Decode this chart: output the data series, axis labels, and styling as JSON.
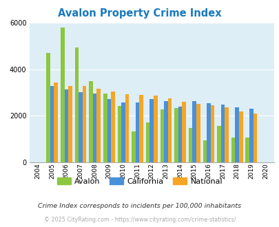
{
  "title": "Avalon Property Crime Index",
  "years": [
    2004,
    2005,
    2006,
    2007,
    2008,
    2009,
    2010,
    2011,
    2012,
    2013,
    2014,
    2015,
    2016,
    2017,
    2018,
    2019,
    2020
  ],
  "avalon": [
    0,
    4700,
    5800,
    4950,
    3500,
    2950,
    2420,
    1330,
    1720,
    2280,
    2330,
    1480,
    950,
    1560,
    1060,
    1060,
    0
  ],
  "california": [
    0,
    3280,
    3130,
    3020,
    2950,
    2720,
    2580,
    2570,
    2720,
    2620,
    2390,
    2620,
    2530,
    2480,
    2370,
    2290,
    0
  ],
  "national": [
    0,
    3420,
    3290,
    3270,
    3170,
    3040,
    2940,
    2900,
    2860,
    2740,
    2610,
    2500,
    2450,
    2360,
    2200,
    2090,
    0
  ],
  "avalon_color": "#8dc63f",
  "california_color": "#4a90d9",
  "national_color": "#f5a623",
  "bg_color": "#ddeef6",
  "ylim": [
    0,
    6000
  ],
  "yticks": [
    0,
    2000,
    4000,
    6000
  ],
  "subtitle": "Crime Index corresponds to incidents per 100,000 inhabitants",
  "footer": "© 2025 CityRating.com - https://www.cityrating.com/crime-statistics/",
  "bar_width": 0.27,
  "title_color": "#1a7abf",
  "subtitle_color": "#333333",
  "footer_color": "#aaaaaa"
}
